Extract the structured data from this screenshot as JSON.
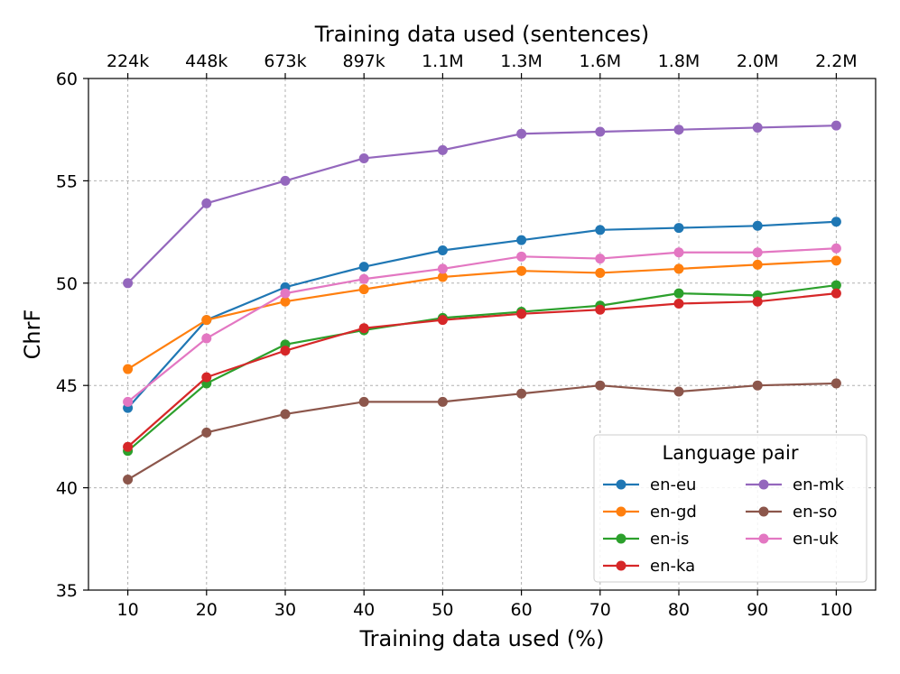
{
  "chart_data": {
    "type": "line",
    "xlabel": "Training data used (%)",
    "top_xlabel": "Training data used (sentences)",
    "ylabel": "ChrF",
    "x": [
      10,
      20,
      30,
      40,
      50,
      60,
      70,
      80,
      90,
      100
    ],
    "top_tick_labels": [
      "224k",
      "448k",
      "673k",
      "897k",
      "1.1M",
      "1.3M",
      "1.6M",
      "1.8M",
      "2.0M",
      "2.2M"
    ],
    "xlim": [
      5,
      105
    ],
    "ylim": [
      35,
      60
    ],
    "yticks": [
      35,
      40,
      45,
      50,
      55,
      60
    ],
    "grid": true,
    "legend": {
      "title": "Language pair",
      "placement": "bottom-right",
      "columns": 2
    },
    "series": [
      {
        "name": "en-eu",
        "color": "#1f77b4",
        "values": [
          43.9,
          48.2,
          49.8,
          50.8,
          51.6,
          52.1,
          52.6,
          52.7,
          52.8,
          53.0
        ]
      },
      {
        "name": "en-gd",
        "color": "#ff7f0e",
        "values": [
          45.8,
          48.2,
          49.1,
          49.7,
          50.3,
          50.6,
          50.5,
          50.7,
          50.9,
          51.1
        ]
      },
      {
        "name": "en-is",
        "color": "#2ca02c",
        "values": [
          41.8,
          45.1,
          47.0,
          47.7,
          48.3,
          48.6,
          48.9,
          49.5,
          49.4,
          49.9
        ]
      },
      {
        "name": "en-ka",
        "color": "#d62728",
        "values": [
          42.0,
          45.4,
          46.7,
          47.8,
          48.2,
          48.5,
          48.7,
          49.0,
          49.1,
          49.5
        ]
      },
      {
        "name": "en-mk",
        "color": "#9467bd",
        "values": [
          50.0,
          53.9,
          55.0,
          56.1,
          56.5,
          57.3,
          57.4,
          57.5,
          57.6,
          57.7
        ]
      },
      {
        "name": "en-so",
        "color": "#8c564b",
        "values": [
          40.4,
          42.7,
          43.6,
          44.2,
          44.2,
          44.6,
          45.0,
          44.7,
          45.0,
          45.1
        ]
      },
      {
        "name": "en-uk",
        "color": "#e377c2",
        "values": [
          44.2,
          47.3,
          49.5,
          50.2,
          50.7,
          51.3,
          51.2,
          51.5,
          51.5,
          51.7
        ]
      }
    ]
  }
}
